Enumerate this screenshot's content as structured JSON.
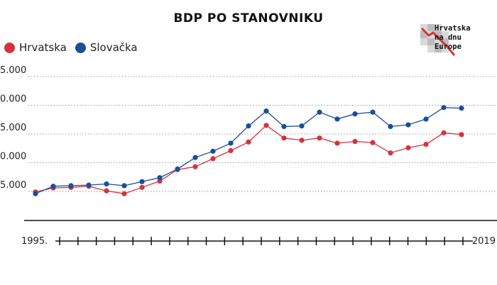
{
  "chart_data": {
    "type": "line",
    "title": "BDP PO STANOVNIKU",
    "x": [
      1995,
      1996,
      1997,
      1998,
      1999,
      2000,
      2001,
      2002,
      2003,
      2004,
      2005,
      2006,
      2007,
      2008,
      2009,
      2010,
      2011,
      2012,
      2013,
      2014,
      2015,
      2016,
      2017,
      2018,
      2019
    ],
    "x_start_label": "1995.",
    "x_end_label": "2019",
    "y_ticks": [
      "5.000",
      "0.000",
      "5.000",
      "0.000",
      "5.000"
    ],
    "y_tick_values": [
      25,
      20,
      15,
      10,
      5
    ],
    "ylim": [
      0,
      27
    ],
    "grid": true,
    "legend_position": "top-left",
    "series": [
      {
        "name": "Hrvatska",
        "color": "#d5333c",
        "values": [
          4.9,
          5.6,
          5.7,
          5.9,
          5.1,
          4.6,
          5.7,
          6.8,
          8.8,
          9.3,
          10.7,
          12.1,
          13.6,
          16.5,
          14.3,
          13.9,
          14.3,
          13.4,
          13.7,
          13.5,
          11.7,
          12.6,
          13.2,
          15.2,
          14.9
        ]
      },
      {
        "name": "Slovačka",
        "color": "#1a4e98",
        "values": [
          4.6,
          5.9,
          6.0,
          6.1,
          6.3,
          6.0,
          6.7,
          7.4,
          8.9,
          10.9,
          12.0,
          13.4,
          16.4,
          19.0,
          16.3,
          16.4,
          18.8,
          17.6,
          18.5,
          18.8,
          16.3,
          16.6,
          17.6,
          19.6,
          19.5
        ]
      }
    ]
  },
  "logo": {
    "line1": "Hrvatska",
    "line2": "na dnu",
    "line3": "Europe"
  }
}
